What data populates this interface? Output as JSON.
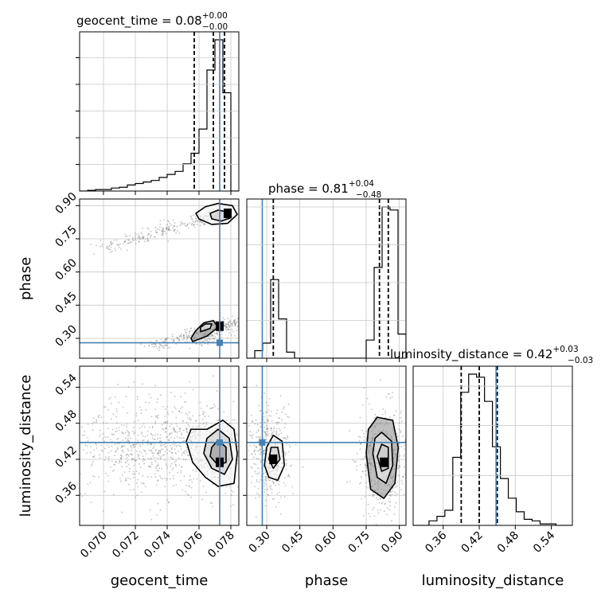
{
  "chart_data": {
    "type": "corner",
    "parameters": [
      "geocent_time",
      "phase",
      "luminosity_distance"
    ],
    "truths": {
      "geocent_time": 0.0773,
      "phase": 0.28,
      "luminosity_distance": 0.448
    },
    "titles": [
      {
        "param": "geocent_time",
        "main": "geocent_time = 0.08",
        "sup": "+0.00",
        "sub": "−0.00"
      },
      {
        "param": "phase",
        "main": "phase = 0.81",
        "sup": "+0.04",
        "sub": "−0.48"
      },
      {
        "param": "luminosity_distance",
        "main": "luminosity_distance = 0.42",
        "sup": "+0.03",
        "sub": "−0.03"
      }
    ],
    "ranges": {
      "geocent_time": [
        0.0685,
        0.0785
      ],
      "phase": [
        0.21,
        0.93
      ],
      "luminosity_distance": [
        0.31,
        0.575
      ]
    },
    "ticks": {
      "geocent_time": [
        "0.070",
        "0.072",
        "0.074",
        "0.076",
        "0.078"
      ],
      "phase": [
        "0.30",
        "0.45",
        "0.60",
        "0.75",
        "0.90"
      ],
      "luminosity_distance": [
        "0.36",
        "0.42",
        "0.48",
        "0.54"
      ]
    },
    "quantiles": {
      "geocent_time": [
        0.0757,
        0.0769,
        0.0776
      ],
      "phase": [
        0.33,
        0.81,
        0.85
      ],
      "luminosity_distance": [
        0.39,
        0.42,
        0.45
      ]
    },
    "histograms": {
      "geocent_time": {
        "edges": [
          0.0685,
          0.069,
          0.0695,
          0.07,
          0.0705,
          0.071,
          0.0715,
          0.072,
          0.0725,
          0.073,
          0.0735,
          0.074,
          0.0745,
          0.075,
          0.0755,
          0.076,
          0.0765,
          0.077,
          0.0775,
          0.078,
          0.0785
        ],
        "counts": [
          0,
          0.5,
          1,
          1,
          2,
          2.5,
          4,
          5,
          6,
          7,
          9,
          11,
          13,
          18,
          25,
          41,
          80,
          100,
          65,
          0
        ]
      },
      "phase": {
        "edges": [
          0.21,
          0.246,
          0.282,
          0.318,
          0.354,
          0.39,
          0.426,
          0.462,
          0.498,
          0.534,
          0.57,
          0.606,
          0.642,
          0.678,
          0.714,
          0.75,
          0.786,
          0.822,
          0.858,
          0.894,
          0.93
        ],
        "counts": [
          0,
          5,
          10,
          52,
          26,
          4,
          0,
          0,
          0,
          0,
          0,
          0,
          0,
          0,
          0,
          12,
          60,
          100,
          98,
          16
        ]
      },
      "luminosity_distance": {
        "edges": [
          0.31,
          0.3232,
          0.3364,
          0.3496,
          0.3628,
          0.376,
          0.3892,
          0.4024,
          0.4156,
          0.4288,
          0.442,
          0.4552,
          0.4684,
          0.4816,
          0.4948,
          0.508,
          0.5212,
          0.5344,
          0.5476,
          0.5608,
          0.574
        ],
        "counts": [
          0,
          0,
          3,
          6,
          10,
          45,
          88,
          100,
          98,
          82,
          52,
          31,
          18,
          9,
          4,
          3,
          1,
          1,
          0,
          0
        ]
      }
    },
    "contours": {
      "phase_vs_geocent_time": [
        [
          [
            0.076,
            0.84
          ],
          [
            0.0768,
            0.815
          ],
          [
            0.0778,
            0.82
          ],
          [
            0.0784,
            0.86
          ],
          [
            0.0781,
            0.9
          ],
          [
            0.0772,
            0.91
          ],
          [
            0.0764,
            0.895
          ],
          [
            0.0758,
            0.865
          ]
        ],
        [
          [
            0.0768,
            0.84
          ],
          [
            0.0774,
            0.83
          ],
          [
            0.078,
            0.845
          ],
          [
            0.0779,
            0.87
          ],
          [
            0.0772,
            0.88
          ],
          [
            0.0767,
            0.865
          ]
        ],
        [
          [
            0.0756,
            0.285
          ],
          [
            0.0765,
            0.31
          ],
          [
            0.0772,
            0.35
          ],
          [
            0.0769,
            0.38
          ],
          [
            0.0763,
            0.37
          ],
          [
            0.0758,
            0.335
          ],
          [
            0.0755,
            0.3
          ]
        ],
        [
          [
            0.0761,
            0.33
          ],
          [
            0.0767,
            0.345
          ],
          [
            0.0768,
            0.365
          ],
          [
            0.0764,
            0.365
          ],
          [
            0.0761,
            0.35
          ]
        ]
      ],
      "luminosity_distance_vs_geocent_time": [
        [
          [
            0.0752,
            0.45
          ],
          [
            0.0756,
            0.415
          ],
          [
            0.0764,
            0.39
          ],
          [
            0.0772,
            0.375
          ],
          [
            0.0782,
            0.38
          ],
          [
            0.0784,
            0.43
          ],
          [
            0.0782,
            0.47
          ],
          [
            0.0775,
            0.485
          ],
          [
            0.0765,
            0.47
          ],
          [
            0.0755,
            0.47
          ]
        ],
        [
          [
            0.0763,
            0.43
          ],
          [
            0.0768,
            0.405
          ],
          [
            0.0776,
            0.395
          ],
          [
            0.0781,
            0.42
          ],
          [
            0.0779,
            0.455
          ],
          [
            0.0772,
            0.47
          ],
          [
            0.0765,
            0.455
          ]
        ],
        [
          [
            0.0767,
            0.425
          ],
          [
            0.0772,
            0.41
          ],
          [
            0.0777,
            0.415
          ],
          [
            0.0777,
            0.44
          ],
          [
            0.0772,
            0.452
          ],
          [
            0.0768,
            0.44
          ]
        ]
      ],
      "luminosity_distance_vs_phase": [
        [
          [
            0.29,
            0.41
          ],
          [
            0.31,
            0.39
          ],
          [
            0.35,
            0.385
          ],
          [
            0.38,
            0.41
          ],
          [
            0.37,
            0.45
          ],
          [
            0.33,
            0.46
          ],
          [
            0.3,
            0.44
          ]
        ],
        [
          [
            0.31,
            0.42
          ],
          [
            0.33,
            0.405
          ],
          [
            0.36,
            0.42
          ],
          [
            0.35,
            0.44
          ],
          [
            0.32,
            0.44
          ]
        ],
        [
          [
            0.75,
            0.43
          ],
          [
            0.77,
            0.37
          ],
          [
            0.83,
            0.355
          ],
          [
            0.88,
            0.38
          ],
          [
            0.895,
            0.44
          ],
          [
            0.87,
            0.485
          ],
          [
            0.8,
            0.49
          ],
          [
            0.76,
            0.47
          ]
        ],
        [
          [
            0.78,
            0.43
          ],
          [
            0.8,
            0.39
          ],
          [
            0.84,
            0.38
          ],
          [
            0.87,
            0.41
          ],
          [
            0.865,
            0.45
          ],
          [
            0.82,
            0.465
          ],
          [
            0.79,
            0.455
          ]
        ],
        [
          [
            0.8,
            0.425
          ],
          [
            0.82,
            0.4
          ],
          [
            0.85,
            0.405
          ],
          [
            0.85,
            0.44
          ],
          [
            0.82,
            0.445
          ]
        ]
      ]
    },
    "dense_cores": {
      "phase_vs_geocent_time": [
        [
          0.0778,
          0.865
        ],
        [
          0.0773,
          0.355
        ]
      ],
      "luminosity_distance_vs_geocent_time": [
        [
          0.0773,
          0.415
        ]
      ],
      "luminosity_distance_vs_phase": [
        [
          0.83,
          0.415
        ],
        [
          0.33,
          0.42
        ]
      ]
    },
    "sample_clouds": {
      "phase_vs_geocent_time": [
        {
          "from": [
            0.07,
            0.71
          ],
          "to": [
            0.0783,
            0.88
          ],
          "spread": [
            0.0005,
            0.012
          ],
          "n": 280
        },
        {
          "from": [
            0.073,
            0.26
          ],
          "to": [
            0.0783,
            0.38
          ],
          "spread": [
            0.0004,
            0.012
          ],
          "n": 240
        },
        {
          "from": [
            0.076,
            0.28
          ],
          "to": [
            0.0775,
            0.36
          ],
          "spread": [
            0.0006,
            0.015
          ],
          "n": 150
        }
      ],
      "luminosity_distance_vs_geocent_time": [
        {
          "from": [
            0.0702,
            0.44
          ],
          "to": [
            0.0783,
            0.44
          ],
          "spread": [
            0.0018,
            0.04
          ],
          "n": 950
        }
      ],
      "luminosity_distance_vs_phase": [
        {
          "from": [
            0.26,
            0.43
          ],
          "to": [
            0.37,
            0.43
          ],
          "spread": [
            0.03,
            0.04
          ],
          "n": 420
        },
        {
          "from": [
            0.75,
            0.42
          ],
          "to": [
            0.9,
            0.42
          ],
          "spread": [
            0.035,
            0.04
          ],
          "n": 520
        }
      ]
    },
    "grid": true,
    "truth_color": "#4682b4"
  }
}
